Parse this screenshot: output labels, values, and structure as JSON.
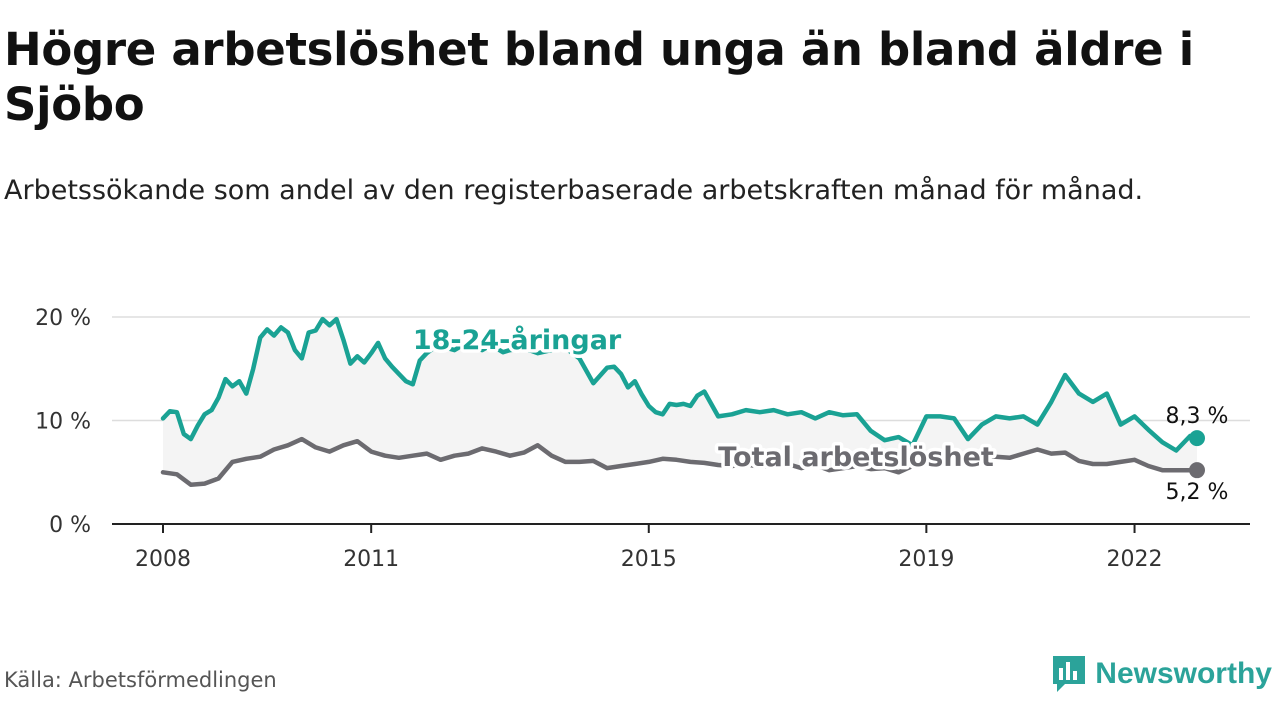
{
  "header": {
    "title": "Högre arbetslöshet bland unga än bland äldre i Sjöbo",
    "subtitle": "Arbetssökande som andel av den registerbaserade arbetskraften månad för månad."
  },
  "footer": {
    "source": "Källa: Arbetsförmedlingen",
    "brand": "Newsworthy"
  },
  "colors": {
    "youth": "#1aa294",
    "total": "#6c6b70",
    "band": "#f4f4f4",
    "grid": "#dddddd",
    "axis": "#222222"
  },
  "chart_data": {
    "type": "line",
    "title": "Högre arbetslöshet bland unga än bland äldre i Sjöbo",
    "xlabel": "",
    "ylabel": "",
    "ylim": [
      0,
      20
    ],
    "xlim": [
      2008.0,
      2022.9
    ],
    "y_ticks": [
      {
        "value": 0,
        "label": "0 %"
      },
      {
        "value": 10,
        "label": "10 %"
      },
      {
        "value": 20,
        "label": "20 %"
      }
    ],
    "x_ticks": [
      {
        "value": 2008,
        "label": "2008"
      },
      {
        "value": 2011,
        "label": "2011"
      },
      {
        "value": 2015,
        "label": "2015"
      },
      {
        "value": 2019,
        "label": "2019"
      },
      {
        "value": 2022,
        "label": "2022"
      }
    ],
    "grid": true,
    "series": [
      {
        "name": "18-24-åringar",
        "end_label": "8,3 %",
        "x": [
          2008.0,
          2008.1,
          2008.2,
          2008.3,
          2008.4,
          2008.5,
          2008.6,
          2008.7,
          2008.8,
          2008.9,
          2009.0,
          2009.1,
          2009.2,
          2009.3,
          2009.4,
          2009.5,
          2009.6,
          2009.7,
          2009.8,
          2009.9,
          2010.0,
          2010.1,
          2010.2,
          2010.3,
          2010.4,
          2010.5,
          2010.6,
          2010.7,
          2010.8,
          2010.9,
          2011.0,
          2011.1,
          2011.2,
          2011.3,
          2011.4,
          2011.5,
          2011.6,
          2011.7,
          2011.8,
          2011.9,
          2012.0,
          2012.1,
          2012.2,
          2012.3,
          2012.4,
          2012.5,
          2012.6,
          2012.7,
          2012.8,
          2012.9,
          2013.0,
          2013.2,
          2013.4,
          2013.6,
          2013.8,
          2014.0,
          2014.2,
          2014.4,
          2014.5,
          2014.6,
          2014.7,
          2014.8,
          2014.9,
          2015.0,
          2015.1,
          2015.2,
          2015.3,
          2015.4,
          2015.5,
          2015.6,
          2015.7,
          2015.8,
          2015.9,
          2016.0,
          2016.2,
          2016.4,
          2016.6,
          2016.8,
          2017.0,
          2017.2,
          2017.4,
          2017.6,
          2017.8,
          2018.0,
          2018.2,
          2018.4,
          2018.6,
          2018.8,
          2019.0,
          2019.2,
          2019.4,
          2019.6,
          2019.8,
          2020.0,
          2020.2,
          2020.4,
          2020.6,
          2020.8,
          2021.0,
          2021.2,
          2021.4,
          2021.6,
          2021.8,
          2022.0,
          2022.2,
          2022.4,
          2022.6,
          2022.8,
          2022.9
        ],
        "values": [
          10.2,
          10.9,
          10.8,
          8.7,
          8.2,
          9.5,
          10.6,
          11.0,
          12.2,
          14.0,
          13.3,
          13.8,
          12.6,
          15.0,
          18.0,
          18.8,
          18.2,
          19.0,
          18.5,
          16.8,
          16.0,
          18.5,
          18.7,
          19.8,
          19.2,
          19.8,
          17.8,
          15.5,
          16.2,
          15.6,
          16.5,
          17.5,
          16.0,
          15.2,
          14.5,
          13.8,
          13.5,
          15.8,
          16.5,
          17.0,
          17.2,
          17.0,
          16.8,
          17.2,
          17.5,
          17.0,
          16.8,
          17.2,
          17.0,
          16.6,
          16.8,
          17.0,
          16.5,
          16.8,
          17.0,
          16.0,
          13.6,
          15.1,
          15.2,
          14.5,
          13.2,
          13.8,
          12.5,
          11.4,
          10.8,
          10.6,
          11.6,
          11.5,
          11.6,
          11.4,
          12.4,
          12.8,
          11.6,
          10.4,
          10.6,
          11.0,
          10.8,
          11.0,
          10.6,
          10.8,
          10.2,
          10.8,
          10.5,
          10.6,
          9.0,
          8.1,
          8.4,
          7.6,
          10.4,
          10.4,
          10.2,
          8.2,
          9.6,
          10.4,
          10.2,
          10.4,
          9.6,
          11.8,
          14.4,
          12.6,
          11.8,
          12.6,
          9.6,
          10.4,
          9.1,
          7.9,
          7.1,
          8.5,
          8.3
        ]
      },
      {
        "name": "Total arbetslöshet",
        "end_label": "5,2 %",
        "x": [
          2008.0,
          2008.2,
          2008.4,
          2008.6,
          2008.8,
          2009.0,
          2009.2,
          2009.4,
          2009.6,
          2009.8,
          2010.0,
          2010.2,
          2010.4,
          2010.6,
          2010.8,
          2011.0,
          2011.2,
          2011.4,
          2011.6,
          2011.8,
          2012.0,
          2012.2,
          2012.4,
          2012.6,
          2012.8,
          2013.0,
          2013.2,
          2013.4,
          2013.6,
          2013.8,
          2014.0,
          2014.2,
          2014.4,
          2014.6,
          2014.8,
          2015.0,
          2015.2,
          2015.4,
          2015.6,
          2015.8,
          2016.0,
          2016.2,
          2016.4,
          2016.6,
          2016.8,
          2017.0,
          2017.2,
          2017.4,
          2017.6,
          2017.8,
          2018.0,
          2018.2,
          2018.4,
          2018.6,
          2018.8,
          2019.0,
          2019.2,
          2019.4,
          2019.6,
          2019.8,
          2020.0,
          2020.2,
          2020.4,
          2020.6,
          2020.8,
          2021.0,
          2021.2,
          2021.4,
          2021.6,
          2021.8,
          2022.0,
          2022.2,
          2022.4,
          2022.6,
          2022.8,
          2022.9
        ],
        "values": [
          5.0,
          4.8,
          3.8,
          3.9,
          4.4,
          6.0,
          6.3,
          6.5,
          7.2,
          7.6,
          8.2,
          7.4,
          7.0,
          7.6,
          8.0,
          7.0,
          6.6,
          6.4,
          6.6,
          6.8,
          6.2,
          6.6,
          6.8,
          7.3,
          7.0,
          6.6,
          6.9,
          7.6,
          6.6,
          6.0,
          6.0,
          6.1,
          5.4,
          5.6,
          5.8,
          6.0,
          6.3,
          6.2,
          6.0,
          5.9,
          5.7,
          5.6,
          5.8,
          5.5,
          5.6,
          5.8,
          5.4,
          5.7,
          5.2,
          5.4,
          5.6,
          5.3,
          5.4,
          5.0,
          5.6,
          6.3,
          6.4,
          6.5,
          6.2,
          6.6,
          6.5,
          6.4,
          6.8,
          7.2,
          6.8,
          6.9,
          6.1,
          5.8,
          5.8,
          6.0,
          6.2,
          5.6,
          5.2,
          5.2,
          5.2,
          5.2
        ]
      }
    ]
  }
}
